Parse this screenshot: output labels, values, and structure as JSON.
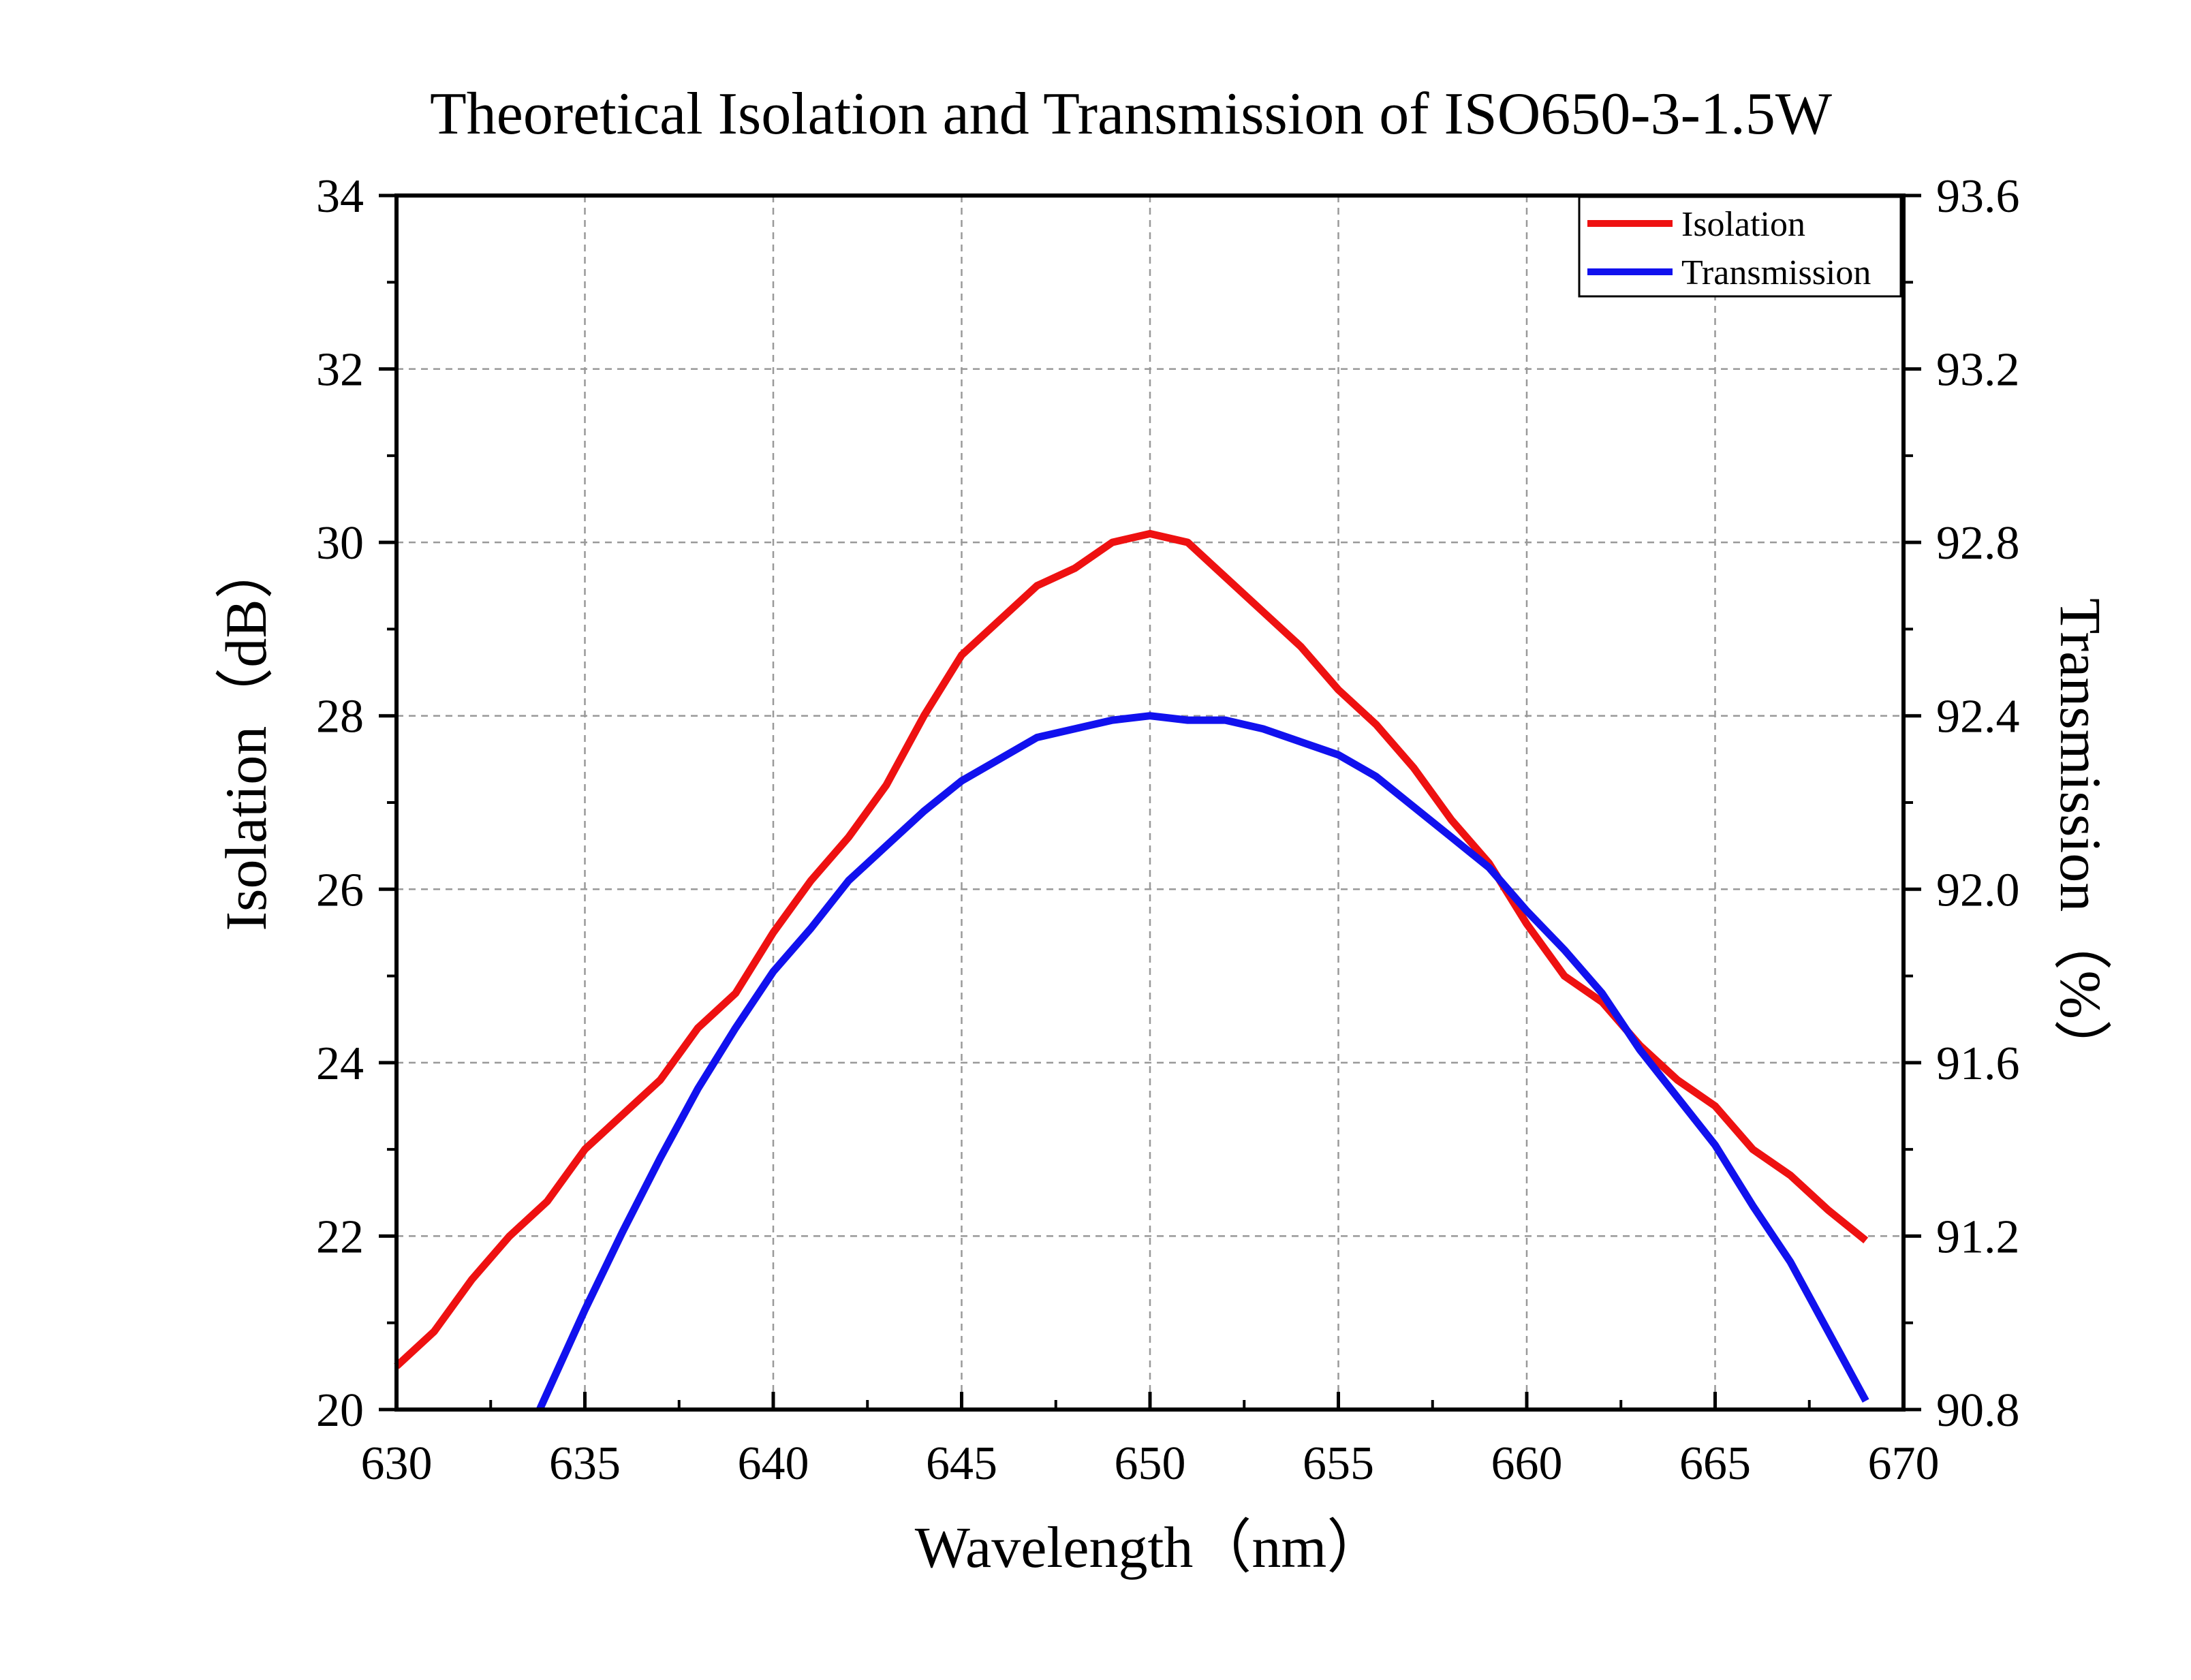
{
  "chart_data": {
    "type": "line",
    "title": "Theoretical Isolation and Transmission of ISO650-3-1.5W",
    "xlabel": "Wavelength（nm）",
    "ylabel_left": "Isolation（dB）",
    "ylabel_right": "Transmission（%）",
    "xlim": [
      630,
      670
    ],
    "ylim_left": [
      20,
      34
    ],
    "ylim_right": [
      90.8,
      93.6
    ],
    "x_ticks": [
      "630",
      "635",
      "640",
      "645",
      "650",
      "655",
      "660",
      "665",
      "670"
    ],
    "y_left_ticks": [
      "20",
      "22",
      "24",
      "26",
      "28",
      "30",
      "32",
      "34"
    ],
    "y_right_ticks": [
      "90.8",
      "91.2",
      "91.6",
      "92.0",
      "92.4",
      "92.8",
      "93.2",
      "93.6"
    ],
    "grid": true,
    "legend_position": "top-right",
    "series": [
      {
        "name": "Isolation",
        "axis": "left",
        "color": "#ee1111",
        "x": [
          630,
          631,
          632,
          633,
          634,
          635,
          636,
          637,
          638,
          639,
          640,
          641,
          642,
          643,
          644,
          645,
          646,
          647,
          648,
          649,
          650,
          651,
          652,
          653,
          654,
          655,
          656,
          657,
          658,
          659,
          660,
          661,
          662,
          663,
          664,
          665,
          666,
          667,
          668,
          669
        ],
        "y": [
          20.5,
          20.9,
          21.5,
          22.0,
          22.4,
          23.0,
          23.4,
          23.8,
          24.4,
          24.8,
          25.5,
          26.1,
          26.6,
          27.2,
          28.0,
          28.7,
          29.1,
          29.5,
          29.7,
          30.0,
          30.1,
          30.0,
          29.6,
          29.2,
          28.8,
          28.3,
          27.9,
          27.4,
          26.8,
          26.3,
          25.6,
          25.0,
          24.7,
          24.2,
          23.8,
          23.5,
          23.0,
          22.7,
          22.3,
          21.95
        ]
      },
      {
        "name": "Transmission",
        "axis": "right",
        "color": "#1111ee",
        "x": [
          633.8,
          635,
          636,
          637,
          638,
          639,
          640,
          641,
          642,
          643,
          644,
          645,
          646,
          647,
          648,
          649,
          650,
          651,
          652,
          653,
          654,
          655,
          656,
          657,
          658,
          659,
          660,
          661,
          662,
          663,
          664,
          665,
          666,
          667,
          668,
          669
        ],
        "y": [
          90.8,
          91.03,
          91.21,
          91.38,
          91.54,
          91.68,
          91.81,
          91.91,
          92.02,
          92.1,
          92.18,
          92.25,
          92.3,
          92.35,
          92.37,
          92.39,
          92.4,
          92.39,
          92.39,
          92.37,
          92.34,
          92.31,
          92.26,
          92.19,
          92.12,
          92.05,
          91.95,
          91.86,
          91.76,
          91.63,
          91.52,
          91.41,
          91.27,
          91.14,
          90.98,
          90.82
        ]
      }
    ]
  }
}
